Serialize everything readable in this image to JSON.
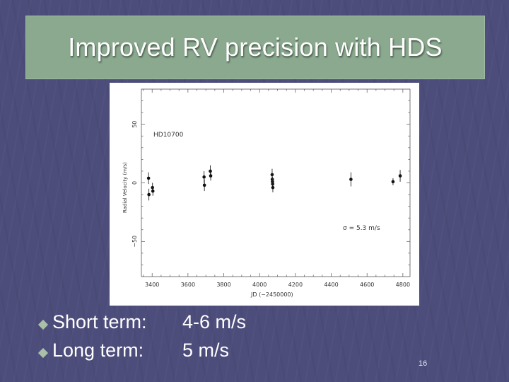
{
  "slide": {
    "title": "Improved RV precision with HDS",
    "page_number": "16"
  },
  "bullets": [
    {
      "label": "Short term:",
      "value": "4-6 m/s"
    },
    {
      "label": "Long term:",
      "value": "5 m/s"
    }
  ],
  "colors": {
    "background": "#4d4d7c",
    "title_band": "#8aa98f",
    "bullet": "#a9bfa6"
  },
  "chart_data": {
    "type": "scatter",
    "title": "",
    "star_label": "HD10700",
    "xlabel": "JD (−2450000)",
    "ylabel": "Radial Velocity (m/s)",
    "xlim": [
      3340,
      4840
    ],
    "ylim": [
      -80,
      80
    ],
    "x_ticks": [
      3400,
      3600,
      3800,
      4000,
      4200,
      4400,
      4600,
      4800
    ],
    "x_tick_labels": [
      "3400",
      "3600",
      "3800",
      "4000",
      "4200",
      "4400",
      "4600",
      "4800"
    ],
    "y_ticks": [
      -50,
      0,
      50
    ],
    "y_tick_labels": [
      "−50",
      "0",
      "50"
    ],
    "annotation": "σ = 5.3  m/s",
    "points": [
      {
        "x": 3380,
        "y": 4,
        "err": 5
      },
      {
        "x": 3382,
        "y": -10,
        "err": 5
      },
      {
        "x": 3402,
        "y": -4,
        "err": 4
      },
      {
        "x": 3404,
        "y": -7,
        "err": 4
      },
      {
        "x": 3690,
        "y": 5,
        "err": 5
      },
      {
        "x": 3692,
        "y": -2,
        "err": 5
      },
      {
        "x": 3725,
        "y": 10,
        "err": 5
      },
      {
        "x": 3727,
        "y": 6,
        "err": 4
      },
      {
        "x": 4070,
        "y": 7,
        "err": 5
      },
      {
        "x": 4071,
        "y": 3,
        "err": 4
      },
      {
        "x": 4072,
        "y": 1,
        "err": 4
      },
      {
        "x": 4073,
        "y": -1,
        "err": 4
      },
      {
        "x": 4074,
        "y": -4,
        "err": 4
      },
      {
        "x": 4510,
        "y": 3,
        "err": 6
      },
      {
        "x": 4745,
        "y": 1,
        "err": 3
      },
      {
        "x": 4785,
        "y": 6,
        "err": 5
      }
    ]
  }
}
